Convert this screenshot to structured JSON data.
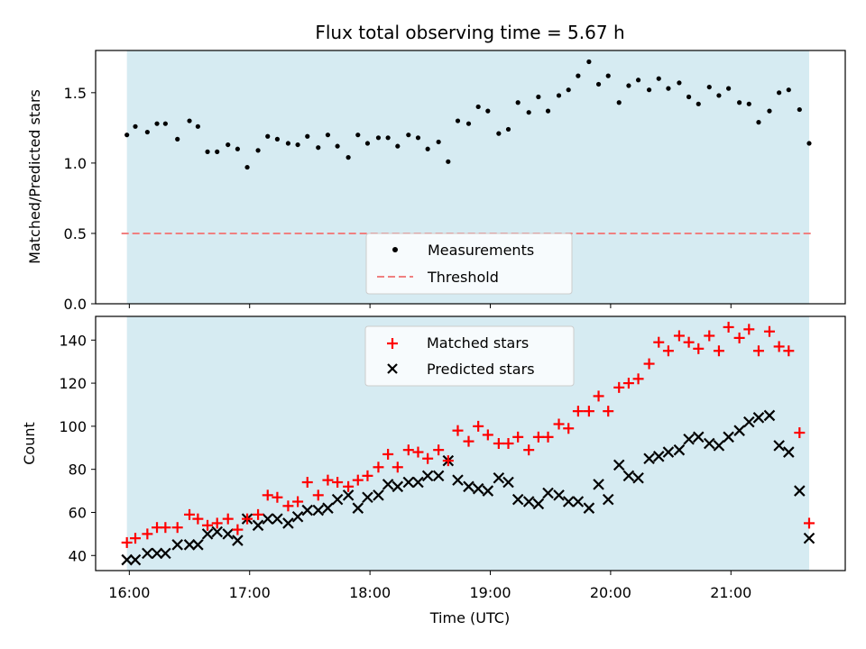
{
  "figure": {
    "title": "Flux total observing time = 5.67 h"
  },
  "colors": {
    "band": "#add8e6",
    "band_opacity": 0.5,
    "threshold": "#f08080",
    "matched": "#ff0000",
    "predicted": "#000000",
    "measurements": "#000000"
  },
  "chart_data": [
    {
      "type": "scatter",
      "name": "ratio-panel",
      "ylabel": "Matched/Predicted stars",
      "xlabel": "",
      "ylim": [
        0,
        1.8
      ],
      "xlim": [
        15.72,
        21.95
      ],
      "yticks": [
        0.0,
        0.5,
        1.0,
        1.5
      ],
      "ytick_labels": [
        "0.0",
        "0.5",
        "1.0",
        "1.5"
      ],
      "xticks": [
        16,
        17,
        18,
        19,
        20,
        21
      ],
      "shaded_span": [
        15.98,
        21.65
      ],
      "legend": {
        "position": "lower center",
        "entries": [
          "Measurements",
          "Threshold"
        ]
      },
      "threshold": 0.5,
      "series": [
        {
          "name": "Measurements",
          "x": [
            15.98,
            16.05,
            16.15,
            16.23,
            16.3,
            16.4,
            16.5,
            16.57,
            16.65,
            16.73,
            16.82,
            16.9,
            16.98,
            17.07,
            17.15,
            17.23,
            17.32,
            17.4,
            17.48,
            17.57,
            17.65,
            17.73,
            17.82,
            17.9,
            17.98,
            18.07,
            18.15,
            18.23,
            18.32,
            18.4,
            18.48,
            18.57,
            18.65,
            18.73,
            18.82,
            18.9,
            18.98,
            19.07,
            19.15,
            19.23,
            19.32,
            19.4,
            19.48,
            19.57,
            19.65,
            19.73,
            19.82,
            19.9,
            19.98,
            20.07,
            20.15,
            20.23,
            20.32,
            20.4,
            20.48,
            20.57,
            20.65,
            20.73,
            20.82,
            20.9,
            20.98,
            21.07,
            21.15,
            21.23,
            21.32,
            21.4,
            21.48,
            21.57,
            21.65
          ],
          "y": [
            1.2,
            1.26,
            1.22,
            1.28,
            1.28,
            1.17,
            1.3,
            1.26,
            1.08,
            1.08,
            1.13,
            1.1,
            0.97,
            1.09,
            1.19,
            1.17,
            1.14,
            1.13,
            1.19,
            1.11,
            1.2,
            1.12,
            1.04,
            1.2,
            1.14,
            1.18,
            1.18,
            1.12,
            1.2,
            1.18,
            1.1,
            1.15,
            1.01,
            1.3,
            1.28,
            1.4,
            1.37,
            1.21,
            1.24,
            1.43,
            1.36,
            1.47,
            1.37,
            1.48,
            1.52,
            1.62,
            1.72,
            1.56,
            1.62,
            1.43,
            1.55,
            1.59,
            1.52,
            1.6,
            1.53,
            1.57,
            1.47,
            1.42,
            1.54,
            1.48,
            1.53,
            1.43,
            1.42,
            1.29,
            1.37,
            1.5,
            1.52,
            1.38,
            1.14
          ]
        }
      ]
    },
    {
      "type": "scatter",
      "name": "count-panel",
      "ylabel": "Count",
      "xlabel": "Time (UTC)",
      "ylim": [
        33,
        151
      ],
      "xlim": [
        15.72,
        21.95
      ],
      "yticks": [
        40,
        60,
        80,
        100,
        120,
        140
      ],
      "ytick_labels": [
        "40",
        "60",
        "80",
        "100",
        "120",
        "140"
      ],
      "xticks": [
        16,
        17,
        18,
        19,
        20,
        21
      ],
      "xtick_labels": [
        "16:00",
        "17:00",
        "18:00",
        "19:00",
        "20:00",
        "21:00"
      ],
      "shaded_span": [
        15.98,
        21.65
      ],
      "legend": {
        "position": "upper center",
        "entries": [
          "Matched stars",
          "Predicted stars"
        ]
      },
      "series": [
        {
          "name": "Matched stars",
          "marker": "plus",
          "x": [
            15.98,
            16.05,
            16.15,
            16.23,
            16.3,
            16.4,
            16.5,
            16.57,
            16.65,
            16.73,
            16.82,
            16.9,
            16.98,
            17.07,
            17.15,
            17.23,
            17.32,
            17.4,
            17.48,
            17.57,
            17.65,
            17.73,
            17.82,
            17.9,
            17.98,
            18.07,
            18.15,
            18.23,
            18.32,
            18.4,
            18.48,
            18.57,
            18.65,
            18.73,
            18.82,
            18.9,
            18.98,
            19.07,
            19.15,
            19.23,
            19.32,
            19.4,
            19.48,
            19.57,
            19.65,
            19.73,
            19.82,
            19.9,
            19.98,
            20.07,
            20.15,
            20.23,
            20.32,
            20.4,
            20.48,
            20.57,
            20.65,
            20.73,
            20.82,
            20.9,
            20.98,
            21.07,
            21.15,
            21.23,
            21.32,
            21.4,
            21.48,
            21.57,
            21.65
          ],
          "y": [
            46,
            48,
            50,
            53,
            53,
            53,
            59,
            57,
            54,
            55,
            57,
            52,
            57,
            59,
            68,
            67,
            63,
            65,
            74,
            68,
            75,
            74,
            72,
            75,
            77,
            81,
            87,
            81,
            89,
            88,
            85,
            89,
            84,
            98,
            93,
            100,
            96,
            92,
            92,
            95,
            89,
            95,
            95,
            101,
            99,
            107,
            107,
            114,
            107,
            118,
            120,
            122,
            129,
            139,
            135,
            142,
            139,
            136,
            142,
            135,
            146,
            141,
            145,
            135,
            144,
            137,
            135,
            97,
            55
          ]
        },
        {
          "name": "Predicted stars",
          "marker": "x",
          "x": [
            15.98,
            16.05,
            16.15,
            16.23,
            16.3,
            16.4,
            16.5,
            16.57,
            16.65,
            16.73,
            16.82,
            16.9,
            16.98,
            17.07,
            17.15,
            17.23,
            17.32,
            17.4,
            17.48,
            17.57,
            17.65,
            17.73,
            17.82,
            17.9,
            17.98,
            18.07,
            18.15,
            18.23,
            18.32,
            18.4,
            18.48,
            18.57,
            18.65,
            18.73,
            18.82,
            18.9,
            18.98,
            19.07,
            19.15,
            19.23,
            19.32,
            19.4,
            19.48,
            19.57,
            19.65,
            19.73,
            19.82,
            19.9,
            19.98,
            20.07,
            20.15,
            20.23,
            20.32,
            20.4,
            20.48,
            20.57,
            20.65,
            20.73,
            20.82,
            20.9,
            20.98,
            21.07,
            21.15,
            21.23,
            21.32,
            21.4,
            21.48,
            21.57,
            21.65
          ],
          "y": [
            38,
            38,
            41,
            41,
            41,
            45,
            45,
            45,
            50,
            51,
            50,
            47,
            57,
            54,
            57,
            57,
            55,
            58,
            61,
            61,
            62,
            66,
            68,
            62,
            67,
            68,
            73,
            72,
            74,
            74,
            77,
            77,
            84,
            75,
            72,
            71,
            70,
            76,
            74,
            66,
            65,
            64,
            69,
            68,
            65,
            65,
            62,
            73,
            66,
            82,
            77,
            76,
            85,
            86,
            88,
            89,
            94,
            95,
            92,
            91,
            95,
            98,
            102,
            104,
            105,
            91,
            88,
            70,
            48
          ]
        }
      ]
    }
  ]
}
